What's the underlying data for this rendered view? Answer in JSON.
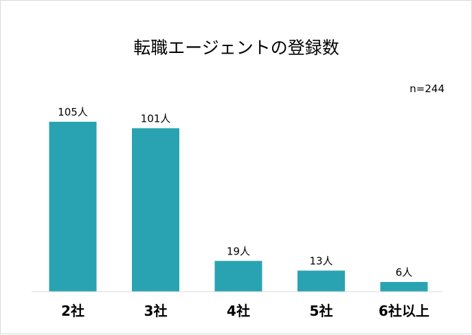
{
  "chart_data": {
    "type": "bar",
    "title": "転職エージェントの登録数",
    "sample_note": "n=244",
    "categories": [
      "2社",
      "3社",
      "4社",
      "5社",
      "6社以上"
    ],
    "values": [
      105,
      101,
      19,
      13,
      6
    ],
    "data_labels": [
      "105人",
      "101人",
      "19人",
      "13人",
      "6人"
    ],
    "bar_color": "#29A3B1",
    "axis_color": "#d9d9d9",
    "xlabel": "",
    "ylabel": "",
    "ylim": [
      0,
      120
    ],
    "grid": false,
    "legend": "none"
  }
}
